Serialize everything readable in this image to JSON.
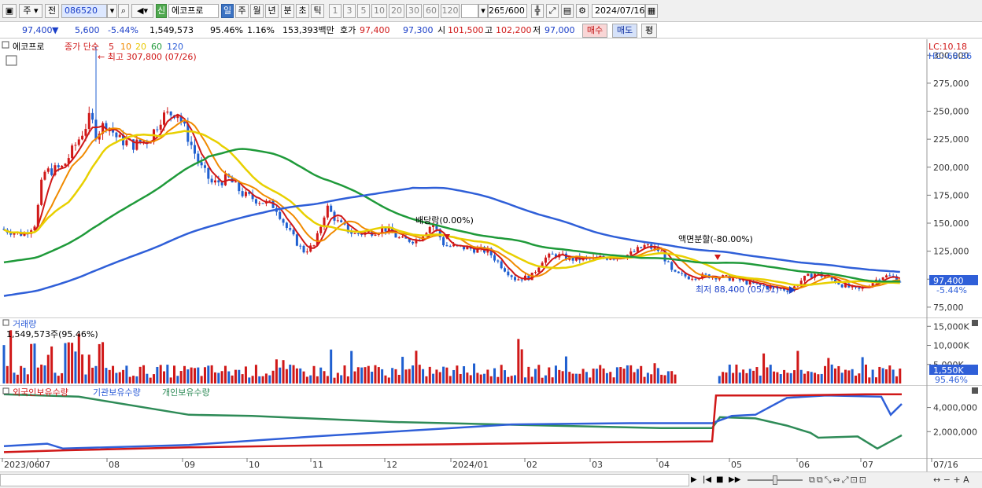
{
  "toolbar": {
    "market": "주",
    "period_type": "전",
    "code": "086520",
    "badge": "신",
    "stock_name": "에코프로",
    "periods": [
      "일",
      "주",
      "월",
      "년",
      "분",
      "초",
      "틱"
    ],
    "minutes": [
      "1",
      "3",
      "5",
      "10",
      "20",
      "30",
      "60",
      "120"
    ],
    "count": "265",
    "count_total": "/600",
    "date": "2024/07/16"
  },
  "info": {
    "price": "97,400",
    "arrow": "▼",
    "change": "5,600",
    "change_pct": "-5.44%",
    "volume": "1,549,573",
    "vol_ratio": "95.46%",
    "turnover": "1.16%",
    "amount": "153,393백만",
    "bid_label": "호가",
    "ask": "97,400",
    "bid": "97,300",
    "open_label": "시",
    "open": "101,500",
    "high_label": "고",
    "high": "102,200",
    "low_label": "저",
    "low": "97,000",
    "buy_label": "매수",
    "sell_label": "매도",
    "eval_label": "평"
  },
  "legend": {
    "name": "에코프로",
    "ma_title": "종가 단순",
    "ma_periods": [
      "5",
      "10",
      "20",
      "60",
      "120"
    ],
    "ma_colors": [
      "#d01818",
      "#f08a00",
      "#e8d000",
      "#1f9a3a",
      "#2f5fd8"
    ],
    "lc": "LC:10.18",
    "hc": "HC:-68.36"
  },
  "annotations": {
    "high": "최고 307,800 (07/26)",
    "low": "최저 88,400 (05/31)",
    "dividend": "배당락(0.00%)",
    "split": "액면분할(-80.00%)"
  },
  "price_axis": [
    "300,000",
    "275,000",
    "250,000",
    "225,000",
    "200,000",
    "175,000",
    "150,000",
    "125,000",
    "100,000",
    "75,000"
  ],
  "price_tag": {
    "price": "97,400",
    "pct": "-5.44%"
  },
  "volume": {
    "title": "거래량",
    "value": "1,549,573주(95.46%)",
    "axis": [
      "15,000K",
      "10,000K",
      "5,000K"
    ],
    "tag": "1,550K",
    "tag_pct": "95.46%"
  },
  "holdings": {
    "series": [
      "외국인보유수량",
      "기관보유수량",
      "개인보유수량"
    ],
    "colors": [
      "#d01818",
      "#2f5fd8",
      "#2e8b57"
    ],
    "axis": [
      "4,000,000",
      "2,000,000"
    ]
  },
  "xaxis": [
    "2023/06",
    "07",
    "08",
    "09",
    "10",
    "11",
    "12",
    "2024/01",
    "02",
    "03",
    "04",
    "05",
    "06",
    "07",
    "07/16"
  ],
  "colors": {
    "up": "#d01818",
    "down": "#1f5fd0",
    "selected": "#3b72c2"
  }
}
